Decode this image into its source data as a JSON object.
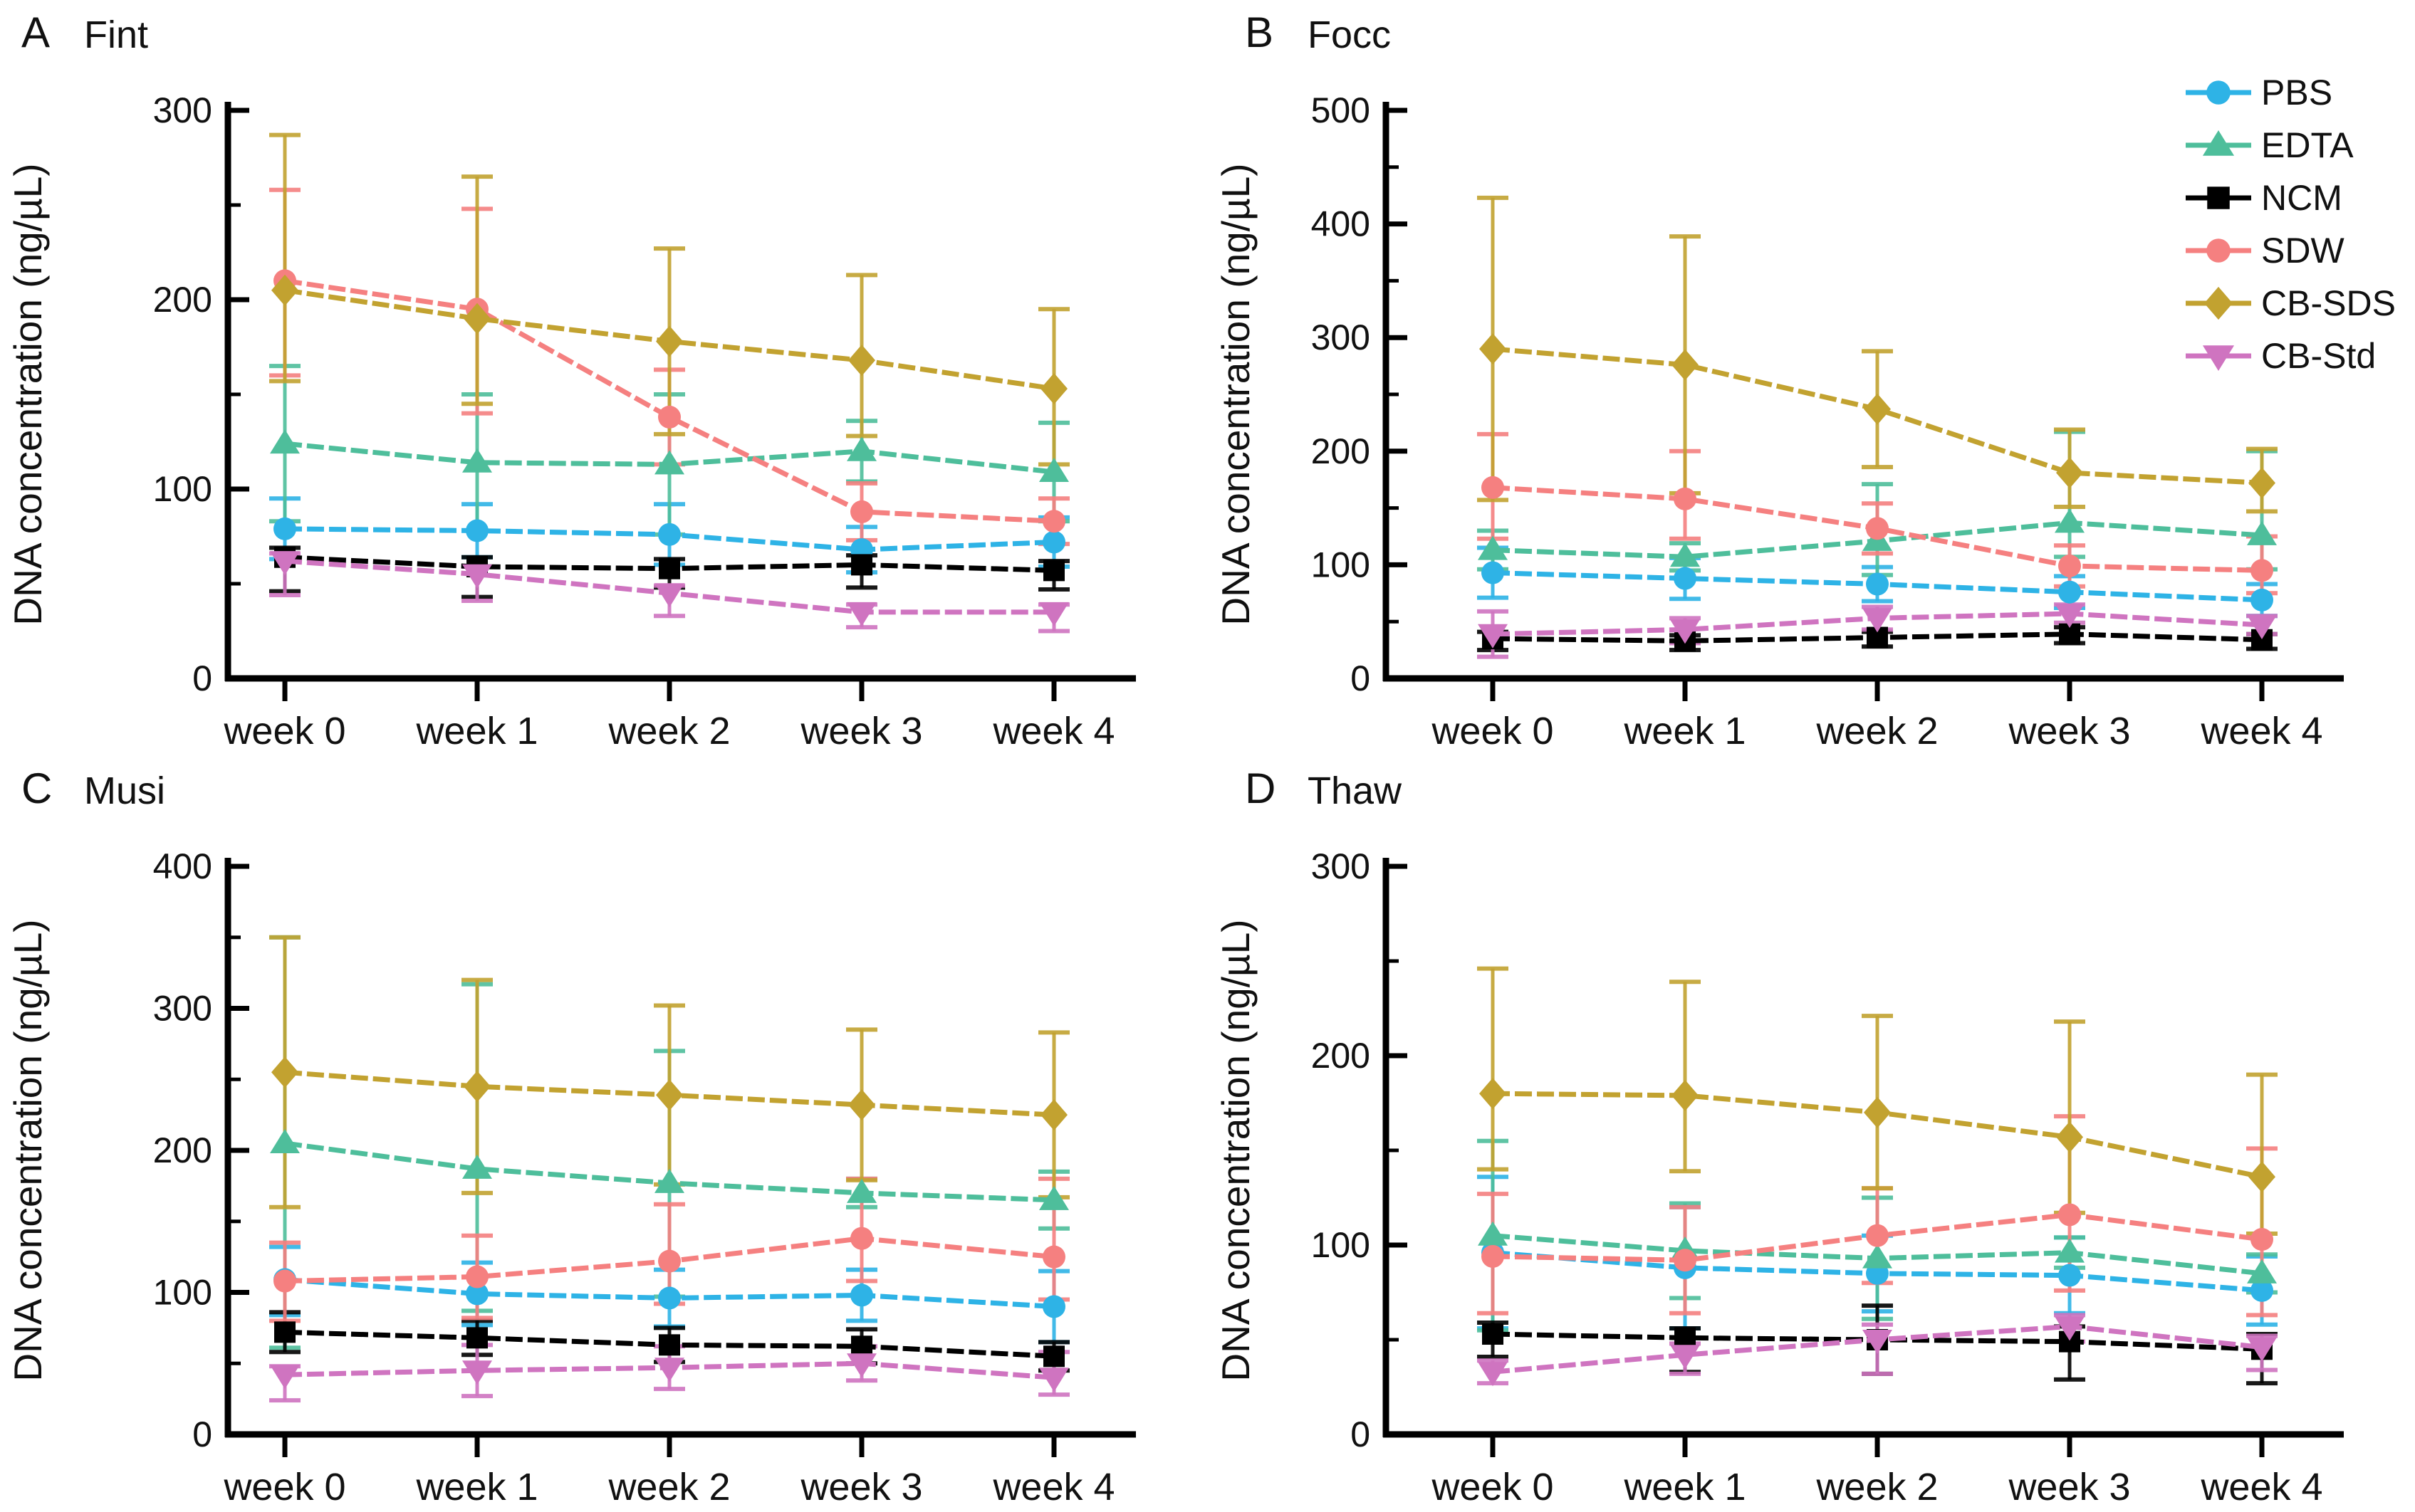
{
  "figure": {
    "background": "#ffffff",
    "ylabel": "DNA concentration (ng/µL)",
    "x_categories": [
      "week 0",
      "week 1",
      "week 2",
      "week 3",
      "week 4"
    ],
    "legend": [
      {
        "name": "PBS",
        "color": "#2eb3e6",
        "marker": "circle"
      },
      {
        "name": "EDTA",
        "color": "#4ebe9b",
        "marker": "triangle-up"
      },
      {
        "name": "NCM",
        "color": "#000000",
        "marker": "square"
      },
      {
        "name": "SDW",
        "color": "#f58080",
        "marker": "circle"
      },
      {
        "name": "CB-SDS",
        "color": "#c2a230",
        "marker": "diamond"
      },
      {
        "name": "CB-Std",
        "color": "#cf74c0",
        "marker": "triangle-down"
      }
    ]
  },
  "chart_data": [
    {
      "type": "line",
      "panel_label": "A",
      "title": "Fint",
      "xlabel": "",
      "ylabel": "DNA concentration (ng/µL)",
      "x": [
        "week 0",
        "week 1",
        "week 2",
        "week 3",
        "week 4"
      ],
      "ylim": [
        0,
        300
      ],
      "ytick_step": 100,
      "yminor_step": 50,
      "legend_position": "none",
      "grid": false,
      "series": [
        {
          "name": "PBS",
          "values": [
            79,
            78,
            76,
            68,
            72
          ],
          "err_up": [
            16,
            14,
            16,
            12,
            13
          ],
          "err_dn": [
            16,
            14,
            16,
            12,
            13
          ]
        },
        {
          "name": "EDTA",
          "values": [
            124,
            114,
            113,
            120,
            109
          ],
          "err_up": [
            41,
            36,
            37,
            16,
            26
          ],
          "err_dn": [
            41,
            36,
            37,
            16,
            26
          ]
        },
        {
          "name": "NCM",
          "values": [
            64,
            59,
            58,
            60,
            57
          ],
          "err_up": [
            5,
            5,
            5,
            5,
            5
          ],
          "err_dn": [
            18,
            16,
            10,
            12,
            10
          ]
        },
        {
          "name": "SDW",
          "values": [
            210,
            195,
            138,
            88,
            83
          ],
          "err_up": [
            48,
            53,
            25,
            15,
            12
          ],
          "err_dn": [
            50,
            55,
            25,
            15,
            12
          ]
        },
        {
          "name": "CB-SDS",
          "values": [
            205,
            190,
            178,
            168,
            153
          ],
          "err_up": [
            82,
            75,
            49,
            45,
            42
          ],
          "err_dn": [
            48,
            45,
            49,
            40,
            40
          ]
        },
        {
          "name": "CB-Std",
          "values": [
            62,
            55,
            45,
            35,
            35
          ],
          "err_up": [
            4,
            4,
            4,
            4,
            4
          ],
          "err_dn": [
            18,
            14,
            12,
            8,
            10
          ]
        }
      ]
    },
    {
      "type": "line",
      "panel_label": "B",
      "title": "Focc",
      "xlabel": "",
      "ylabel": "DNA concentration (ng/µL)",
      "x": [
        "week 0",
        "week 1",
        "week 2",
        "week 3",
        "week 4"
      ],
      "ylim": [
        0,
        500
      ],
      "ytick_step": 100,
      "yminor_step": 50,
      "legend_position": "right",
      "grid": false,
      "series": [
        {
          "name": "PBS",
          "values": [
            93,
            88,
            83,
            76,
            69
          ],
          "err_up": [
            22,
            18,
            15,
            14,
            14
          ],
          "err_dn": [
            22,
            18,
            15,
            14,
            14
          ]
        },
        {
          "name": "EDTA",
          "values": [
            113,
            107,
            121,
            137,
            126
          ],
          "err_up": [
            17,
            12,
            50,
            80,
            74
          ],
          "err_dn": [
            17,
            12,
            30,
            30,
            30
          ]
        },
        {
          "name": "NCM",
          "values": [
            35,
            33,
            36,
            39,
            34
          ],
          "err_up": [
            6,
            5,
            5,
            6,
            5
          ],
          "err_dn": [
            10,
            8,
            8,
            8,
            8
          ]
        },
        {
          "name": "SDW",
          "values": [
            168,
            158,
            132,
            99,
            95
          ],
          "err_up": [
            47,
            42,
            22,
            18,
            30
          ],
          "err_dn": [
            45,
            35,
            22,
            18,
            20
          ]
        },
        {
          "name": "CB-SDS",
          "values": [
            290,
            276,
            237,
            181,
            172
          ],
          "err_up": [
            133,
            113,
            51,
            38,
            30
          ],
          "err_dn": [
            133,
            113,
            51,
            30,
            25
          ]
        },
        {
          "name": "CB-Std",
          "values": [
            39,
            43,
            53,
            57,
            47
          ],
          "err_up": [
            20,
            10,
            10,
            8,
            8
          ],
          "err_dn": [
            20,
            12,
            10,
            8,
            8
          ]
        }
      ]
    },
    {
      "type": "line",
      "panel_label": "C",
      "title": "Musi",
      "xlabel": "",
      "ylabel": "DNA concentration (ng/µL)",
      "x": [
        "week 0",
        "week 1",
        "week 2",
        "week 3",
        "week 4"
      ],
      "ylim": [
        0,
        400
      ],
      "ytick_step": 100,
      "yminor_step": 50,
      "legend_position": "none",
      "grid": false,
      "series": [
        {
          "name": "PBS",
          "values": [
            109,
            99,
            96,
            98,
            90
          ],
          "err_up": [
            23,
            22,
            20,
            18,
            25
          ],
          "err_dn": [
            25,
            22,
            20,
            18,
            25
          ]
        },
        {
          "name": "EDTA",
          "values": [
            205,
            187,
            177,
            170,
            165
          ],
          "err_up": [
            145,
            130,
            93,
            10,
            20
          ],
          "err_dn": [
            144,
            100,
            80,
            10,
            20
          ]
        },
        {
          "name": "NCM",
          "values": [
            72,
            68,
            63,
            62,
            55
          ],
          "err_up": [
            14,
            12,
            12,
            12,
            10
          ],
          "err_dn": [
            14,
            12,
            12,
            12,
            10
          ]
        },
        {
          "name": "SDW",
          "values": [
            108,
            111,
            122,
            138,
            125
          ],
          "err_up": [
            27,
            29,
            40,
            42,
            55
          ],
          "err_dn": [
            28,
            29,
            30,
            30,
            30
          ]
        },
        {
          "name": "CB-SDS",
          "values": [
            255,
            245,
            239,
            232,
            225
          ],
          "err_up": [
            95,
            75,
            63,
            53,
            58
          ],
          "err_dn": [
            95,
            75,
            63,
            53,
            58
          ]
        },
        {
          "name": "CB-Std",
          "values": [
            42,
            45,
            47,
            50,
            40
          ],
          "err_up": [
            6,
            18,
            15,
            12,
            18
          ],
          "err_dn": [
            18,
            18,
            15,
            12,
            12
          ]
        }
      ]
    },
    {
      "type": "line",
      "panel_label": "D",
      "title": "Thaw",
      "xlabel": "",
      "ylabel": "DNA concentration (ng/µL)",
      "x": [
        "week 0",
        "week 1",
        "week 2",
        "week 3",
        "week 4"
      ],
      "ylim": [
        0,
        300
      ],
      "ytick_step": 100,
      "yminor_step": 50,
      "legend_position": "none",
      "grid": false,
      "series": [
        {
          "name": "PBS",
          "values": [
            96,
            88,
            85,
            84,
            76
          ],
          "err_up": [
            40,
            32,
            20,
            20,
            18
          ],
          "err_dn": [
            40,
            32,
            20,
            20,
            18
          ]
        },
        {
          "name": "EDTA",
          "values": [
            105,
            97,
            93,
            96,
            85
          ],
          "err_up": [
            50,
            25,
            32,
            8,
            10
          ],
          "err_dn": [
            50,
            25,
            32,
            8,
            10
          ]
        },
        {
          "name": "NCM",
          "values": [
            53,
            51,
            50,
            49,
            45
          ],
          "err_up": [
            6,
            5,
            18,
            8,
            8
          ],
          "err_dn": [
            12,
            18,
            18,
            20,
            18
          ]
        },
        {
          "name": "SDW",
          "values": [
            94,
            92,
            105,
            116,
            103
          ],
          "err_up": [
            33,
            28,
            25,
            52,
            48
          ],
          "err_dn": [
            30,
            28,
            25,
            40,
            40
          ]
        },
        {
          "name": "CB-SDS",
          "values": [
            180,
            179,
            170,
            157,
            136
          ],
          "err_up": [
            66,
            60,
            51,
            61,
            54
          ],
          "err_dn": [
            40,
            40,
            40,
            40,
            30
          ]
        },
        {
          "name": "CB-Std",
          "values": [
            33,
            42,
            50,
            57,
            46
          ],
          "err_up": [
            6,
            6,
            8,
            6,
            6
          ],
          "err_dn": [
            6,
            10,
            18,
            8,
            12
          ]
        }
      ]
    }
  ]
}
